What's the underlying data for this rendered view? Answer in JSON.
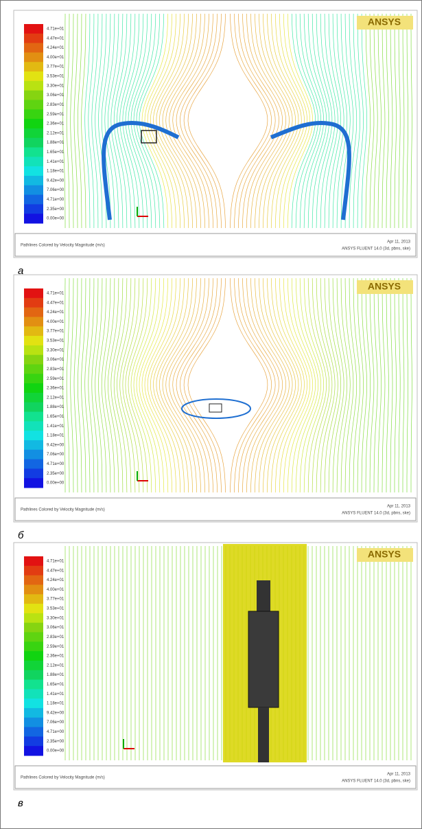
{
  "panels": [
    {
      "colorbar": [
        "4.71e+01",
        "4.47e+01",
        "4.24e+01",
        "4.00e+01",
        "3.77e+01",
        "3.53e+01",
        "3.30e+01",
        "3.06e+01",
        "2.83e+01",
        "2.59e+01",
        "2.36e+01",
        "2.12e+01",
        "1.88e+01",
        "1.65e+01",
        "1.41e+01",
        "1.18e+01",
        "9.42e+00",
        "7.06e+00",
        "4.71e+00",
        "2.35e+00",
        "0.00e+00"
      ],
      "logo": "ANSYS",
      "caption": "Pathlines Colored by Velocity Magnitude (m/s)",
      "date": "Apr 11, 2013",
      "solver": "ANSYS FLUENT 14.0 (3d, pbns, ske)",
      "label": "а"
    },
    {
      "colorbar": [
        "4.71e+01",
        "4.47e+01",
        "4.24e+01",
        "4.00e+01",
        "3.77e+01",
        "3.53e+01",
        "3.30e+01",
        "3.06e+01",
        "2.83e+01",
        "2.59e+01",
        "2.36e+01",
        "2.12e+01",
        "1.88e+01",
        "1.65e+01",
        "1.41e+01",
        "1.18e+01",
        "9.42e+00",
        "7.06e+00",
        "4.71e+00",
        "2.35e+00",
        "0.00e+00"
      ],
      "logo": "ANSYS",
      "caption": "Pathlines Colored by Velocity Magnitude (m/s)",
      "date": "Apr 11, 2013",
      "solver": "ANSYS FLUENT 14.0 (3d, pbns, ske)",
      "label": "б"
    },
    {
      "colorbar": [
        "4.71e+01",
        "4.47e+01",
        "4.24e+01",
        "4.00e+01",
        "3.77e+01",
        "3.53e+01",
        "3.30e+01",
        "3.06e+01",
        "2.83e+01",
        "2.59e+01",
        "2.36e+01",
        "2.12e+01",
        "1.88e+01",
        "1.65e+01",
        "1.41e+01",
        "1.18e+01",
        "9.42e+00",
        "7.06e+00",
        "4.71e+00",
        "2.35e+00",
        "0.00e+00"
      ],
      "logo": "ANSYS",
      "caption": "Pathlines Colored by Velocity Magnitude (m/s)",
      "date": "Apr 11, 2013",
      "solver": "ANSYS FLUENT 14.0 (3d, pbns, ske)",
      "label": "в"
    }
  ]
}
